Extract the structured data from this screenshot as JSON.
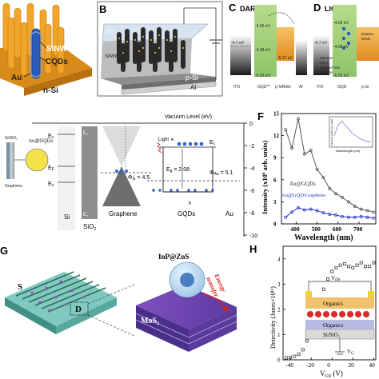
{
  "panels": {
    "A": {
      "label": "",
      "sinw": "SiNW",
      "cqds": "CQDs",
      "au": "Au",
      "nsi": "n-Si"
    },
    "B": {
      "label": "B",
      "ito": "ITO",
      "sinw": "SiNW",
      "psi": "p-Si",
      "al": "Al"
    },
    "C": {
      "label": "C",
      "title": "DARK",
      "e_top": "-4.05 eV",
      "e_mid": "-4.98 eV",
      "e_bot": "-5.17 eV",
      "e_ito": "-4.7 eV",
      "e_low": "-6.02 eV",
      "xl1": "ITO",
      "xl2": "GQD",
      "xl2sup": "Au",
      "xl3": "p-SiNWs",
      "xl4": "Al"
    },
    "D": {
      "label": "D",
      "title": "LIGHT",
      "e_ito": "-4.7 eV",
      "e_top": "-4.05 eV",
      "e_mid": "-4.98 eV",
      "e_low": "-6.02 eV",
      "xl1": "ITO",
      "xl2": "GQD",
      "xl3": "p-Si",
      "ann1": "Downw",
      "ann2": "bendi",
      "ann3": "Electron",
      "ann4": "traps",
      "ann5": "induced hole",
      "ann6": "injection"
    },
    "E": {
      "vacuum": "Vacuum Level (eV)",
      "sisio2": "Si/SiO₂",
      "au_gqds": "Au@GQDs",
      "graphene_left": "Graphene",
      "ec": "E",
      "ec_sub": "c",
      "ev": "E",
      "ev_sub": "v",
      "ef": "E",
      "ef_sub": "F",
      "si": "Si",
      "sio2": "SiO",
      "sio2_sub": "2",
      "graphene": "Graphene",
      "gqds": "GQDs",
      "au": "Au",
      "light": "Light",
      "phi_g": "Φ",
      "phi_g_sub": "G",
      "phi_g_val": " = 4.5",
      "eg": "E",
      "eg_sub": "g",
      "eg_val": " = 2.08",
      "phi_au": "Φ",
      "phi_au_sub": "Au",
      "phi_au_val": " = 5.1",
      "e_minus": "e",
      "h_plus": "h",
      "ec2": "E",
      "ec2_sub": "c",
      "ticks": [
        "0",
        "-2",
        "-4",
        "-6",
        "-8",
        "-10"
      ]
    },
    "F": {
      "label": "F",
      "ylabel": "Intensity (x10⁶ arb. units)",
      "xlabel": "Wavelength (nm)",
      "legend1": "Au@GQDs",
      "legend2": "Au@GQD/Graphene",
      "inset_x": "Wavelength (nm)",
      "inset_y": "Intensity (x10⁵ arb. units)"
    },
    "G": {
      "label": "G",
      "s": "S",
      "d": "D",
      "inp": "InP@ZnS",
      "energy": "Energy",
      "transfer": "transfer",
      "mos": "MoS",
      "mos_sub": "2"
    },
    "H": {
      "label": "H",
      "ylabel": "Detectivity (Jones×10¹¹)",
      "xlabel": "V",
      "xlabel_sub": "GS",
      "xlabel_unit": " (V)",
      "vds": "V",
      "vds_sub": "DS",
      "organics1": "Organics",
      "organics2": "Organics",
      "sisio2": "Si/SiO₂",
      "vg": "V",
      "vg_sub": "G"
    }
  },
  "chart_data": [
    {
      "panel": "F",
      "type": "line",
      "title": "",
      "xlabel": "Wavelength (nm)",
      "ylabel": "Intensity (x10⁶ arb. units)",
      "xlim": [
        330,
        780
      ],
      "ylim": [
        0,
        15
      ],
      "x_ticks": [
        400,
        500,
        600,
        700
      ],
      "y_ticks": [
        0,
        3,
        6,
        9,
        12,
        15
      ],
      "legend_position": "left",
      "x": [
        350,
        380,
        410,
        440,
        470,
        500,
        530,
        560,
        590,
        620,
        650,
        680,
        710,
        740,
        770
      ],
      "series": [
        {
          "name": "Au@GQDs",
          "color": "#555555",
          "values": [
            12.8,
            10.3,
            14.3,
            9.5,
            10.0,
            7.4,
            6.3,
            4.8,
            4.1,
            3.6,
            3.0,
            2.4,
            2.0,
            1.8,
            1.6
          ]
        },
        {
          "name": "Au@GQD/Graphene",
          "color": "#2233cc",
          "values": [
            0.9,
            1.6,
            2.2,
            1.9,
            2.0,
            1.8,
            1.5,
            1.3,
            1.2,
            1.0,
            0.9,
            0.9,
            1.0,
            0.9,
            0.8
          ]
        }
      ]
    },
    {
      "panel": "H",
      "type": "scatter",
      "title": "",
      "xlabel": "V_GS (V)",
      "ylabel": "Detectivity (Jones×10¹¹)",
      "xlim": [
        -47,
        42
      ],
      "ylim": [
        0,
        4.5
      ],
      "x_ticks": [
        -40,
        -20,
        0,
        20,
        40
      ],
      "y_ticks": [
        0,
        1,
        2,
        3,
        4
      ],
      "x": [
        -44,
        -40,
        -36,
        -32,
        -28,
        -24,
        -20,
        -16,
        -12,
        -8,
        -4,
        0,
        4,
        8,
        12,
        16,
        20,
        24,
        28,
        32,
        36,
        40
      ],
      "series": [
        {
          "name": "",
          "color": "#222222",
          "values": [
            0.08,
            0.1,
            0.14,
            0.22,
            0.4,
            0.75,
            1.2,
            1.75,
            2.3,
            2.8,
            3.2,
            3.5,
            3.65,
            3.75,
            3.8,
            3.7,
            3.65,
            3.75,
            3.85,
            3.7,
            3.7,
            3.85
          ]
        }
      ]
    }
  ]
}
